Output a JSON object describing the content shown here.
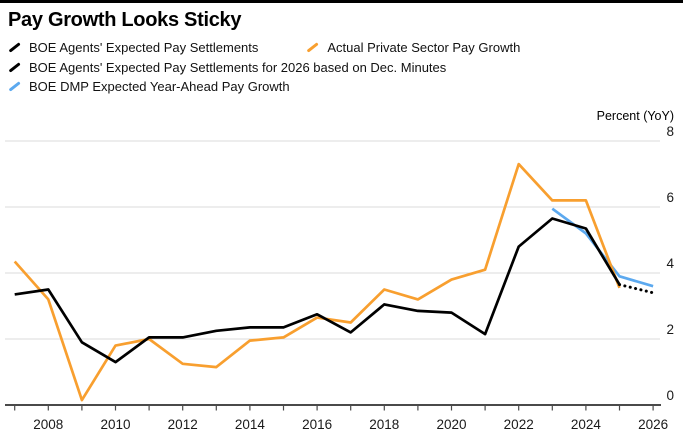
{
  "page": {
    "background": "#ffffff",
    "top_bar_color": "#000000"
  },
  "header": {
    "title": "Pay Growth Looks Sticky"
  },
  "legend": {
    "rows": [
      {
        "items": [
          {
            "label": "BOE Agents' Expected Pay Settlements",
            "color": "#000000"
          },
          {
            "label": "Actual Private Sector Pay Growth",
            "color": "#F89F2F"
          }
        ]
      },
      {
        "items": [
          {
            "label": "BOE Agents' Expected Pay Settlements for 2026 based on Dec. Minutes",
            "color": "#000000"
          }
        ]
      },
      {
        "items": [
          {
            "label": "BOE DMP Expected Year-Ahead Pay Growth",
            "color": "#5CA9EF"
          }
        ]
      }
    ]
  },
  "chart_data": {
    "type": "line",
    "title": "Pay Growth Looks Sticky",
    "xlabel": "",
    "ylabel": "Percent (YoY)",
    "ylim": [
      0,
      8
    ],
    "yticks": [
      0,
      2,
      4,
      6,
      8
    ],
    "xlim": [
      2007,
      2026
    ],
    "xticks": [
      2008,
      2010,
      2012,
      2014,
      2016,
      2018,
      2020,
      2022,
      2024,
      2026
    ],
    "grid": "horizontal",
    "legend_position": "top-left",
    "colors": {
      "grid": "#DBDBDB",
      "axis": "#4A4A4A",
      "tick_text": "#1A1A1A"
    },
    "series": [
      {
        "name": "BOE DMP Expected Year-Ahead Pay Growth",
        "color": "#5CA9EF",
        "style": "solid",
        "x": [
          2023,
          2024,
          2025,
          2026
        ],
        "values": [
          5.95,
          5.2,
          3.9,
          3.6
        ]
      },
      {
        "name": "Actual Private Sector Pay Growth",
        "color": "#F89F2F",
        "style": "solid",
        "x": [
          2007,
          2008,
          2009,
          2010,
          2011,
          2012,
          2013,
          2014,
          2015,
          2016,
          2017,
          2018,
          2019,
          2020,
          2021,
          2022,
          2023,
          2024,
          2025
        ],
        "values": [
          4.35,
          3.2,
          0.15,
          1.8,
          2.0,
          1.25,
          1.15,
          1.95,
          2.05,
          2.65,
          2.5,
          3.5,
          3.2,
          3.8,
          4.1,
          7.3,
          6.2,
          6.2,
          3.55
        ]
      },
      {
        "name": "BOE Agents' Expected Pay Settlements",
        "color": "#000000",
        "style": "solid",
        "x": [
          2007,
          2008,
          2009,
          2010,
          2011,
          2012,
          2013,
          2014,
          2015,
          2016,
          2017,
          2018,
          2019,
          2020,
          2021,
          2022,
          2023,
          2024,
          2025
        ],
        "values": [
          3.35,
          3.5,
          1.9,
          1.3,
          2.05,
          2.05,
          2.25,
          2.35,
          2.35,
          2.75,
          2.2,
          3.05,
          2.85,
          2.8,
          2.15,
          4.8,
          5.65,
          5.35,
          3.65
        ]
      },
      {
        "name": "BOE Agents' Expected Pay Settlements for 2026 based on Dec. Minutes",
        "color": "#000000",
        "style": "dotted",
        "x": [
          2025,
          2026
        ],
        "values": [
          3.65,
          3.4
        ]
      }
    ]
  }
}
